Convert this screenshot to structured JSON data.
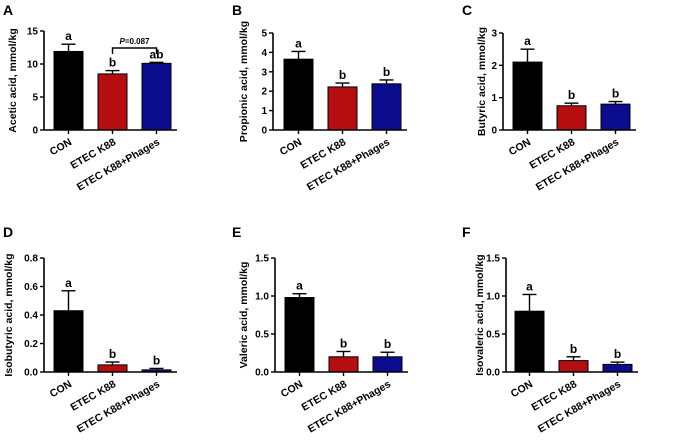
{
  "chart_data": [
    {
      "type": "bar",
      "panel": "A",
      "ylabel": "Acetic acid, mmol/kg",
      "categories": [
        "CON",
        "ETEC K88",
        "ETEC K88+Phages"
      ],
      "values": [
        11.9,
        8.5,
        10.1
      ],
      "errors": [
        1.1,
        0.5,
        0.15
      ],
      "letters": [
        "a",
        "b",
        "ab"
      ],
      "colors": [
        "#000000",
        "#b50d10",
        "#0c0c8f"
      ],
      "ylim": [
        0,
        15
      ],
      "yticks": [
        0,
        5,
        10,
        15
      ],
      "annotation": {
        "text": "P=0.087",
        "between": [
          1,
          2
        ]
      }
    },
    {
      "type": "bar",
      "panel": "B",
      "ylabel": "Propionic acid, mmol/kg",
      "categories": [
        "CON",
        "ETEC K88",
        "ETEC K88+Phages"
      ],
      "values": [
        3.65,
        2.22,
        2.38
      ],
      "errors": [
        0.4,
        0.2,
        0.2
      ],
      "letters": [
        "a",
        "b",
        "b"
      ],
      "colors": [
        "#000000",
        "#b50d10",
        "#0c0c8f"
      ],
      "ylim": [
        0,
        5
      ],
      "yticks": [
        0,
        1,
        2,
        3,
        4,
        5
      ]
    },
    {
      "type": "bar",
      "panel": "C",
      "ylabel": "Butyric acid, mmol/kg",
      "categories": [
        "CON",
        "ETEC K88",
        "ETEC K88+Phages"
      ],
      "values": [
        2.1,
        0.75,
        0.8
      ],
      "errors": [
        0.4,
        0.08,
        0.08
      ],
      "letters": [
        "a",
        "b",
        "b"
      ],
      "colors": [
        "#000000",
        "#b50d10",
        "#0c0c8f"
      ],
      "ylim": [
        0,
        3
      ],
      "yticks": [
        0,
        1,
        2,
        3
      ]
    },
    {
      "type": "bar",
      "panel": "D",
      "ylabel": "Isobutyric acid, mmol/kg",
      "categories": [
        "CON",
        "ETEC K88",
        "ETEC K88+Phages"
      ],
      "values": [
        0.43,
        0.05,
        0.015
      ],
      "errors": [
        0.14,
        0.02,
        0.01
      ],
      "letters": [
        "a",
        "b",
        "b"
      ],
      "colors": [
        "#000000",
        "#b50d10",
        "#0c0c8f"
      ],
      "ylim": [
        0,
        0.8
      ],
      "yticks": [
        0.0,
        0.2,
        0.4,
        0.6,
        0.8
      ],
      "ytick_labels": [
        "0.0",
        "0.2",
        "0.4",
        "0.6",
        "0.8"
      ]
    },
    {
      "type": "bar",
      "panel": "E",
      "ylabel": "Valeric acid, mmol/kg",
      "categories": [
        "CON",
        "ETEC K88",
        "ETEC K88+Phages"
      ],
      "values": [
        0.98,
        0.2,
        0.2
      ],
      "errors": [
        0.05,
        0.07,
        0.06
      ],
      "letters": [
        "a",
        "b",
        "b"
      ],
      "colors": [
        "#000000",
        "#b50d10",
        "#0c0c8f"
      ],
      "ylim": [
        0,
        1.5
      ],
      "yticks": [
        0.0,
        0.5,
        1.0,
        1.5
      ],
      "ytick_labels": [
        "0.0",
        "0.5",
        "1.0",
        "1.5"
      ]
    },
    {
      "type": "bar",
      "panel": "F",
      "ylabel": "Isovaleric acid, mmol/kg",
      "categories": [
        "CON",
        "ETEC K88",
        "ETEC K88+Phages"
      ],
      "values": [
        0.8,
        0.15,
        0.1
      ],
      "errors": [
        0.22,
        0.05,
        0.03
      ],
      "letters": [
        "a",
        "b",
        "b"
      ],
      "colors": [
        "#000000",
        "#b50d10",
        "#0c0c8f"
      ],
      "ylim": [
        0,
        1.5
      ],
      "yticks": [
        0.0,
        0.5,
        1.0,
        1.5
      ],
      "ytick_labels": [
        "0.0",
        "0.5",
        "1.0",
        "1.5"
      ]
    }
  ]
}
